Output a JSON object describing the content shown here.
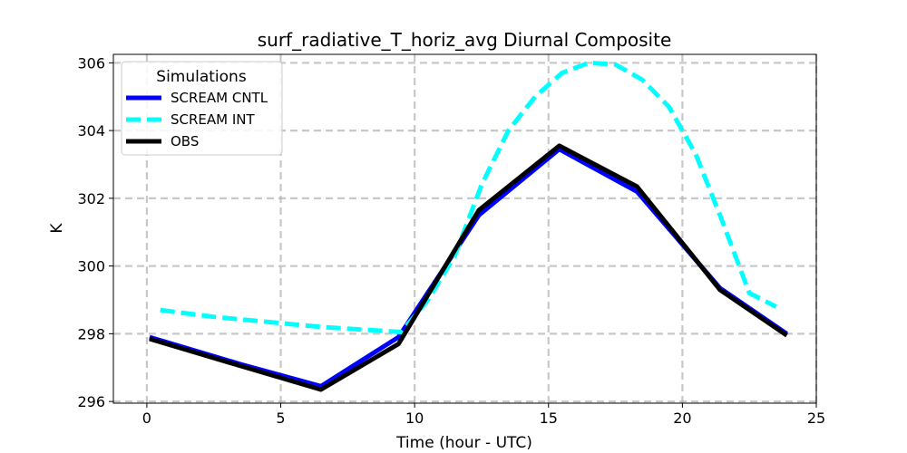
{
  "chart_data": {
    "type": "line",
    "title": "surf_radiative_T_horiz_avg Diurnal Composite",
    "xlabel": "Time (hour - UTC)",
    "ylabel": "K",
    "xlim": [
      -1.25,
      25
    ],
    "ylim": [
      295.95,
      306.25
    ],
    "xticks": [
      0,
      5,
      10,
      15,
      20,
      25
    ],
    "yticks": [
      296,
      298,
      300,
      302,
      304,
      306
    ],
    "grid": true,
    "legend": {
      "title": "Simulations",
      "position": "top-left"
    },
    "series": [
      {
        "name": "SCREAM CNTL",
        "color": "#0000ff",
        "style": "solid",
        "x": [
          0.1,
          3.5,
          6.5,
          9.4,
          12.4,
          15.4,
          18.3,
          21.4,
          23.9
        ],
        "y": [
          297.9,
          297.1,
          296.45,
          297.9,
          301.5,
          303.45,
          302.2,
          299.35,
          298.0
        ]
      },
      {
        "name": "SCREAM INT",
        "color": "#00ffff",
        "style": "dashed",
        "x": [
          0.5,
          2.5,
          4.5,
          6.5,
          8.5,
          9.5,
          10.5,
          11.5,
          12.5,
          13.5,
          14.5,
          15.5,
          16.5,
          17.5,
          18.5,
          19.5,
          20.5,
          21.5,
          22.5,
          23.5
        ],
        "y": [
          298.7,
          298.5,
          298.35,
          298.2,
          298.1,
          298.05,
          299.0,
          300.3,
          302.4,
          304.0,
          305.0,
          305.7,
          306.0,
          305.95,
          305.5,
          304.7,
          303.3,
          301.3,
          299.2,
          298.8
        ]
      },
      {
        "name": "OBS",
        "color": "#000000",
        "style": "solid",
        "x": [
          0.1,
          3.5,
          6.5,
          9.4,
          12.4,
          15.4,
          18.3,
          21.4,
          23.9
        ],
        "y": [
          297.85,
          297.05,
          296.35,
          297.7,
          301.65,
          303.55,
          302.35,
          299.3,
          297.95
        ]
      }
    ]
  }
}
